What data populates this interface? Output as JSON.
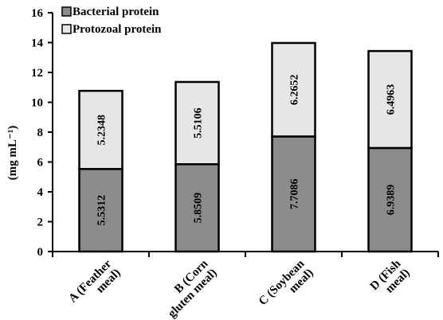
{
  "chart_data": {
    "type": "bar",
    "stacked": true,
    "categories": [
      "A (Feather meal)",
      "B (Corn gluten meal)",
      "C (Soybean meal)",
      "D (Fish meal)"
    ],
    "category_lines": [
      [
        "A (Feather",
        "meal)"
      ],
      [
        "B (Corn",
        "gluten meal)"
      ],
      [
        "C (Soybean",
        "meal)"
      ],
      [
        "D (Fish",
        "meal)"
      ]
    ],
    "series": [
      {
        "name": "Bacterial protein",
        "values": [
          5.5312,
          5.8509,
          7.7086,
          6.9389
        ],
        "labels": [
          "5.5312",
          "5.8509",
          "7.7086",
          "6.9389"
        ],
        "color": "#8c8c8c"
      },
      {
        "name": "Protozoal protein",
        "values": [
          5.2348,
          5.5106,
          6.2652,
          6.4963
        ],
        "labels": [
          "5.2348",
          "5.5106",
          "6.2652",
          "6.4963"
        ],
        "color": "#e6e6e6"
      }
    ],
    "ylabel": "(mg mL⁻¹)",
    "ylim": [
      0,
      16
    ],
    "yticks": [
      0,
      2,
      4,
      6,
      8,
      10,
      12,
      14,
      16
    ],
    "legend_position": "top-left",
    "grid": false
  }
}
